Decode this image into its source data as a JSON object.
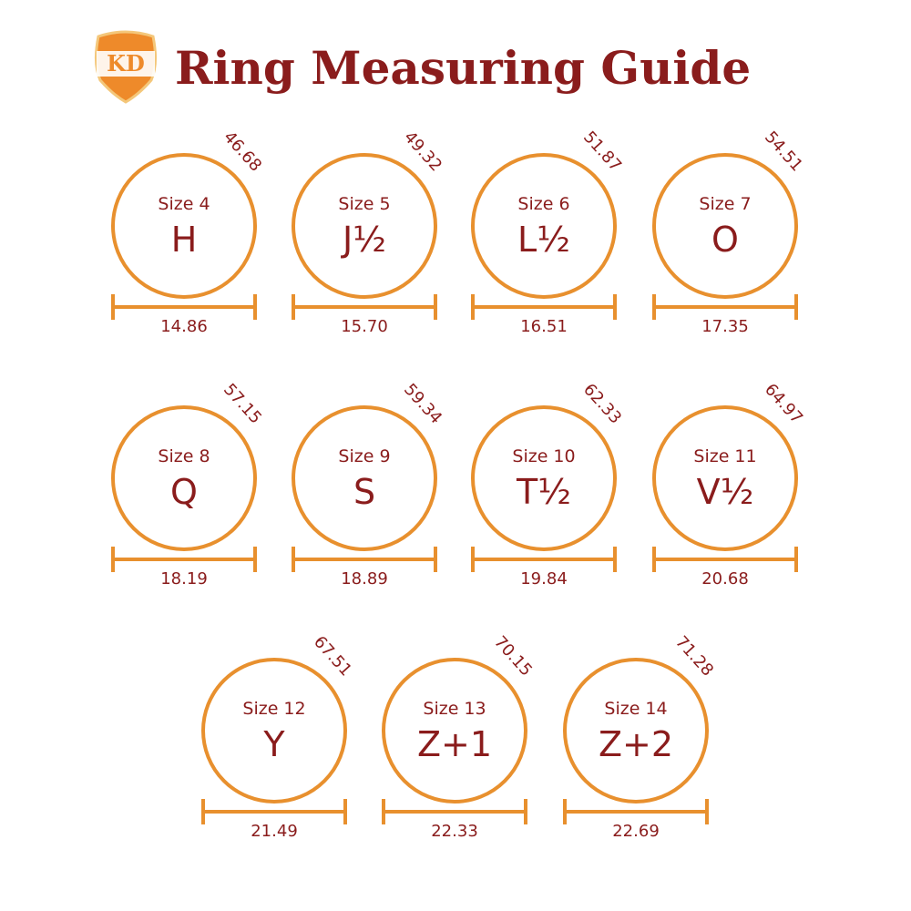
{
  "header": {
    "logo_text": "KD",
    "title": "Ring Measuring Guide"
  },
  "colors": {
    "ring": "#e8902e",
    "text": "#8a1c1c",
    "logo_fill": "#ee8a2a",
    "logo_border": "#f4c77a"
  },
  "units_note": "",
  "rings": [
    {
      "size": "Size 4",
      "letter": "H",
      "circumference": "46.68",
      "diameter": "14.86"
    },
    {
      "size": "Size 5",
      "letter": "J½",
      "circumference": "49.32",
      "diameter": "15.70"
    },
    {
      "size": "Size 6",
      "letter": "L½",
      "circumference": "51.87",
      "diameter": "16.51"
    },
    {
      "size": "Size 7",
      "letter": "O",
      "circumference": "54.51",
      "diameter": "17.35"
    },
    {
      "size": "Size 8",
      "letter": "Q",
      "circumference": "57.15",
      "diameter": "18.19"
    },
    {
      "size": "Size 9",
      "letter": "S",
      "circumference": "59.34",
      "diameter": "18.89"
    },
    {
      "size": "Size 10",
      "letter": "T½",
      "circumference": "62.33",
      "diameter": "19.84"
    },
    {
      "size": "Size 11",
      "letter": "V½",
      "circumference": "64.97",
      "diameter": "20.68"
    },
    {
      "size": "Size 12",
      "letter": "Y",
      "circumference": "67.51",
      "diameter": "21.49"
    },
    {
      "size": "Size 13",
      "letter": "Z+1",
      "circumference": "70.15",
      "diameter": "22.33"
    },
    {
      "size": "Size 14",
      "letter": "Z+2",
      "circumference": "71.28",
      "diameter": "22.69"
    }
  ]
}
